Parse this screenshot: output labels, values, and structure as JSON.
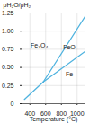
{
  "chart_data": {
    "type": "line",
    "x_label": "Temperature (°C)",
    "y_label": "pH₂O/pH₂",
    "xlim": [
      300,
      1100
    ],
    "xticks": [
      400,
      600,
      800,
      1000
    ],
    "ylim": [
      0,
      1.25
    ],
    "yticks": [
      0,
      {
        "value": 0.25,
        "label": "0.25"
      },
      {
        "value": 0.5,
        "label": "0.50"
      },
      {
        "value": 0.75,
        "label": "0.75"
      },
      {
        "value": 1,
        "label": "1.00"
      },
      {
        "value": 1.25,
        "label": "1.25"
      }
    ],
    "grid": true,
    "color": "#4fb3df",
    "series": [
      {
        "x": [
          330,
          570
        ],
        "values": [
          0.06,
          0.3
        ]
      },
      {
        "x": [
          570,
          1100
        ],
        "values": [
          0.3,
          1.2
        ]
      },
      {
        "x": [
          570,
          1100
        ],
        "values": [
          0.3,
          0.72
        ]
      }
    ],
    "annotations": [
      {
        "text": "Fe₃O₄",
        "x": 520,
        "y": 0.8
      },
      {
        "text": "FeO",
        "x": 900,
        "y": 0.78
      },
      {
        "text": "Fe",
        "x": 900,
        "y": 0.4
      }
    ]
  }
}
